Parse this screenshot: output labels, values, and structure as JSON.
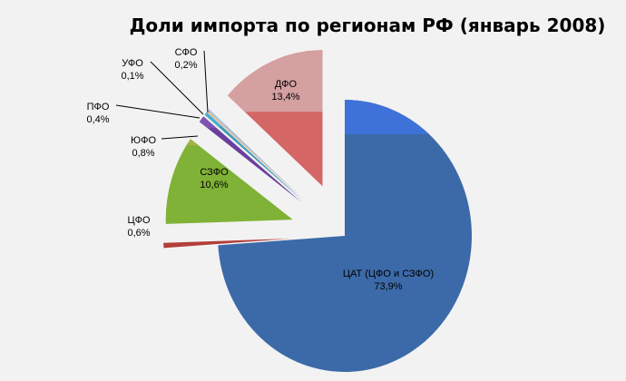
{
  "chart_data": {
    "type": "pie",
    "title": "Доли импорта по регионам РФ (январь 2008)",
    "slices": [
      {
        "label": "ЦАТ (ЦФО и СЗФО)",
        "value_label": "73,9%",
        "value": 73.9,
        "color": "#3c6aa8",
        "top_color": "#3f72d8"
      },
      {
        "label": "ЦФО",
        "value_label": "0,6%",
        "value": 0.6,
        "color": "#b33f3b",
        "top_color": "#c44a44"
      },
      {
        "label": "СЗФО",
        "value_label": "10,6%",
        "value": 10.6,
        "color": "#7fb236",
        "top_color": "#a8b046"
      },
      {
        "label": "ЮФО",
        "value_label": "0,8%",
        "value": 0.8,
        "color": "#6b3f9e",
        "top_color": "#7e52b3"
      },
      {
        "label": "ПФО",
        "value_label": "0,4%",
        "value": 0.4,
        "color": "#3e9ab8",
        "top_color": "#4ab0cc"
      },
      {
        "label": "УФО",
        "value_label": "0,1%",
        "value": 0.1,
        "color": "#e08a3b",
        "top_color": "#f29b4a"
      },
      {
        "label": "СФО",
        "value_label": "0,2%",
        "value": 0.2,
        "color": "#8eaed8",
        "top_color": "#a6c2e8"
      },
      {
        "label": "ДФО",
        "value_label": "13,4%",
        "value": 13.4,
        "color": "#d46666",
        "top_color": "#d4a0a0"
      }
    ]
  }
}
